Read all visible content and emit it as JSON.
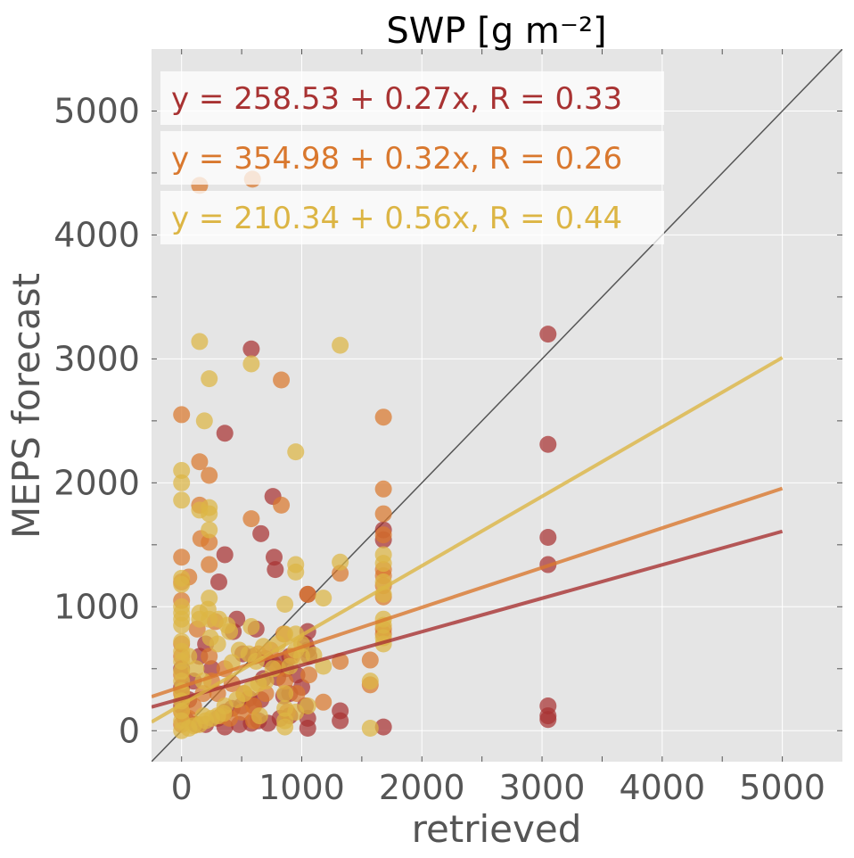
{
  "chart_data": {
    "type": "scatter",
    "title": "SWP [g m⁻²]",
    "xlabel": "retrieved",
    "ylabel": "MEPS forecast",
    "xlim": [
      -250,
      5500
    ],
    "ylim": [
      -250,
      5500
    ],
    "xticks": [
      0,
      1000,
      2000,
      3000,
      4000,
      5000
    ],
    "yticks": [
      0,
      1000,
      2000,
      3000,
      4000,
      5000
    ],
    "grid": true,
    "background": "#e5e5e5",
    "legend_placement": "top-left",
    "identity_line": true,
    "series": [
      {
        "color": "#a83232",
        "equation": "y = 258.53 + 0.27x, R = 0.33",
        "fit": {
          "intercept": 258.53,
          "slope": 0.27
        },
        "points": [
          [
            580,
            3080
          ],
          [
            3050,
            3200
          ],
          [
            3050,
            2310
          ],
          [
            3050,
            1560
          ],
          [
            3050,
            1340
          ],
          [
            3050,
            200
          ],
          [
            3050,
            120
          ],
          [
            3050,
            90
          ],
          [
            360,
            2400
          ],
          [
            760,
            1890
          ],
          [
            660,
            1590
          ],
          [
            360,
            1420
          ],
          [
            310,
            1200
          ],
          [
            770,
            1400
          ],
          [
            780,
            1300
          ],
          [
            620,
            820
          ],
          [
            460,
            900
          ],
          [
            430,
            800
          ],
          [
            510,
            620
          ],
          [
            600,
            600
          ],
          [
            700,
            580
          ],
          [
            760,
            540
          ],
          [
            820,
            560
          ],
          [
            870,
            500
          ],
          [
            1050,
            1100
          ],
          [
            1050,
            800
          ],
          [
            1030,
            700
          ],
          [
            1050,
            650
          ],
          [
            1060,
            600
          ],
          [
            960,
            450
          ],
          [
            1000,
            350
          ],
          [
            900,
            300
          ],
          [
            850,
            280
          ],
          [
            660,
            250
          ],
          [
            600,
            200
          ],
          [
            500,
            200
          ],
          [
            420,
            180
          ],
          [
            360,
            150
          ],
          [
            300,
            100
          ],
          [
            200,
            50
          ],
          [
            360,
            30
          ],
          [
            480,
            50
          ],
          [
            580,
            60
          ],
          [
            640,
            80
          ],
          [
            720,
            60
          ],
          [
            820,
            100
          ],
          [
            900,
            120
          ],
          [
            1050,
            100
          ],
          [
            1050,
            20
          ],
          [
            1320,
            160
          ],
          [
            1320,
            80
          ],
          [
            1680,
            30
          ],
          [
            1680,
            1620
          ],
          [
            1680,
            1540
          ],
          [
            0,
            500
          ],
          [
            0,
            350
          ],
          [
            0,
            200
          ],
          [
            30,
            100
          ],
          [
            60,
            250
          ],
          [
            100,
            400
          ],
          [
            120,
            50
          ],
          [
            150,
            600
          ],
          [
            200,
            700
          ],
          [
            250,
            500
          ],
          [
            560,
            260
          ],
          [
            900,
            600
          ],
          [
            800,
            430
          ],
          [
            680,
            420
          ],
          [
            1030,
            200
          ]
        ]
      },
      {
        "color": "#d9782e",
        "equation": "y = 354.98 + 0.32x, R = 0.26",
        "fit": {
          "intercept": 354.98,
          "slope": 0.32
        },
        "points": [
          [
            150,
            4400
          ],
          [
            590,
            4450
          ],
          [
            0,
            2550
          ],
          [
            150,
            2170
          ],
          [
            230,
            2060
          ],
          [
            830,
            2830
          ],
          [
            1680,
            2530
          ],
          [
            1680,
            1950
          ],
          [
            1680,
            1750
          ],
          [
            1680,
            1580
          ],
          [
            830,
            1820
          ],
          [
            580,
            1710
          ],
          [
            230,
            1520
          ],
          [
            160,
            1550
          ],
          [
            150,
            1820
          ],
          [
            230,
            1340
          ],
          [
            0,
            1400
          ],
          [
            0,
            1200
          ],
          [
            60,
            1240
          ],
          [
            0,
            1050
          ],
          [
            1320,
            1270
          ],
          [
            1320,
            560
          ],
          [
            1570,
            570
          ],
          [
            1570,
            370
          ],
          [
            1680,
            1300
          ],
          [
            1680,
            1250
          ],
          [
            1680,
            1170
          ],
          [
            1680,
            1080
          ],
          [
            1680,
            820
          ],
          [
            1680,
            780
          ],
          [
            1050,
            1100
          ],
          [
            920,
            600
          ],
          [
            800,
            500
          ],
          [
            700,
            300
          ],
          [
            600,
            200
          ],
          [
            500,
            150
          ],
          [
            400,
            100
          ],
          [
            300,
            300
          ],
          [
            250,
            400
          ],
          [
            180,
            300
          ],
          [
            100,
            200
          ],
          [
            60,
            100
          ],
          [
            0,
            700
          ],
          [
            0,
            600
          ],
          [
            0,
            450
          ],
          [
            0,
            300
          ],
          [
            0,
            150
          ],
          [
            0,
            50
          ],
          [
            280,
            880
          ],
          [
            230,
            600
          ],
          [
            360,
            500
          ],
          [
            420,
            380
          ],
          [
            520,
            300
          ],
          [
            640,
            620
          ],
          [
            740,
            650
          ],
          [
            860,
            400
          ],
          [
            960,
            300
          ],
          [
            1060,
            450
          ],
          [
            1180,
            230
          ],
          [
            850,
            780
          ],
          [
            880,
            150
          ],
          [
            330,
            120
          ],
          [
            130,
            820
          ],
          [
            600,
            80
          ]
        ]
      },
      {
        "color": "#dcb544",
        "equation": "y = 210.34 + 0.56x, R = 0.44",
        "fit": {
          "intercept": 210.34,
          "slope": 0.56
        },
        "points": [
          [
            150,
            3140
          ],
          [
            230,
            2840
          ],
          [
            580,
            2960
          ],
          [
            1320,
            3110
          ],
          [
            950,
            2250
          ],
          [
            190,
            2500
          ],
          [
            0,
            2100
          ],
          [
            0,
            2000
          ],
          [
            0,
            1860
          ],
          [
            150,
            1780
          ],
          [
            230,
            1800
          ],
          [
            230,
            1750
          ],
          [
            230,
            1620
          ],
          [
            950,
            1340
          ],
          [
            950,
            1280
          ],
          [
            1320,
            1360
          ],
          [
            1180,
            1070
          ],
          [
            0,
            1230
          ],
          [
            0,
            1180
          ],
          [
            0,
            1000
          ],
          [
            0,
            950
          ],
          [
            0,
            900
          ],
          [
            0,
            850
          ],
          [
            230,
            1070
          ],
          [
            220,
            980
          ],
          [
            230,
            900
          ],
          [
            150,
            900
          ],
          [
            310,
            900
          ],
          [
            380,
            850
          ],
          [
            580,
            840
          ],
          [
            860,
            1020
          ],
          [
            860,
            780
          ],
          [
            950,
            780
          ],
          [
            1000,
            700
          ],
          [
            950,
            650
          ],
          [
            1100,
            610
          ],
          [
            1180,
            520
          ],
          [
            900,
            520
          ],
          [
            760,
            500
          ],
          [
            700,
            400
          ],
          [
            640,
            380
          ],
          [
            580,
            340
          ],
          [
            520,
            300
          ],
          [
            460,
            250
          ],
          [
            360,
            200
          ],
          [
            350,
            140
          ],
          [
            300,
            120
          ],
          [
            250,
            100
          ],
          [
            200,
            80
          ],
          [
            150,
            50
          ],
          [
            100,
            40
          ],
          [
            60,
            20
          ],
          [
            0,
            0
          ],
          [
            0,
            80
          ],
          [
            0,
            160
          ],
          [
            0,
            240
          ],
          [
            0,
            320
          ],
          [
            0,
            400
          ],
          [
            0,
            480
          ],
          [
            0,
            560
          ],
          [
            0,
            640
          ],
          [
            0,
            720
          ],
          [
            60,
            600
          ],
          [
            120,
            500
          ],
          [
            180,
            400
          ],
          [
            240,
            750
          ],
          [
            300,
            700
          ],
          [
            420,
            550
          ],
          [
            480,
            650
          ],
          [
            560,
            620
          ],
          [
            620,
            560
          ],
          [
            680,
            680
          ],
          [
            860,
            300
          ],
          [
            860,
            180
          ],
          [
            860,
            80
          ],
          [
            860,
            30
          ],
          [
            950,
            150
          ],
          [
            1050,
            200
          ],
          [
            1570,
            20
          ],
          [
            1570,
            400
          ],
          [
            1680,
            1420
          ],
          [
            1680,
            1350
          ],
          [
            1680,
            1200
          ],
          [
            1680,
            1100
          ],
          [
            1680,
            900
          ],
          [
            1680,
            850
          ],
          [
            1680,
            750
          ],
          [
            1680,
            700
          ],
          [
            1000,
            600
          ],
          [
            800,
            700
          ],
          [
            650,
            120
          ],
          [
            400,
            800
          ],
          [
            150,
            950
          ],
          [
            180,
            120
          ]
        ]
      }
    ]
  }
}
